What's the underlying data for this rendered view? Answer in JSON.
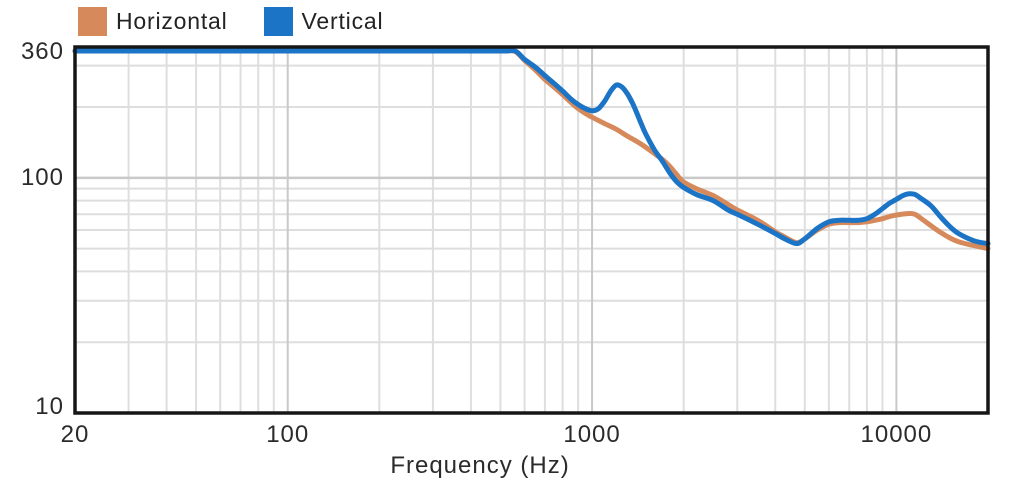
{
  "legend": {
    "items": [
      {
        "label": "Horizontal",
        "color": "#d68a5c"
      },
      {
        "label": "Vertical",
        "color": "#1b74c5"
      }
    ]
  },
  "colors": {
    "background": "#ffffff",
    "grid_minor": "#dedede",
    "grid_major": "#c9c9c9",
    "frame": "#161616",
    "text": "#2b2b2b"
  },
  "chart_data": {
    "type": "line",
    "title": "",
    "xlabel": "Frequency (Hz)",
    "ylabel": "",
    "x_scale": "log",
    "y_scale": "log",
    "xlim": [
      20,
      20000
    ],
    "ylim": [
      10,
      360
    ],
    "grid": true,
    "legend_position": "top-left",
    "x_ticks": [
      {
        "value": 20,
        "label": "20"
      },
      {
        "value": 100,
        "label": "100"
      },
      {
        "value": 1000,
        "label": "1000"
      },
      {
        "value": 10000,
        "label": "10000"
      }
    ],
    "y_ticks": [
      {
        "value": 360,
        "label": "360"
      },
      {
        "value": 100,
        "label": "100"
      },
      {
        "value": 10,
        "label": "10"
      }
    ],
    "series": [
      {
        "name": "Horizontal",
        "color": "#d68a5c",
        "points": [
          [
            20,
            360
          ],
          [
            100,
            360
          ],
          [
            200,
            360
          ],
          [
            300,
            360
          ],
          [
            400,
            360
          ],
          [
            480,
            360
          ],
          [
            520,
            356
          ],
          [
            560,
            344
          ],
          [
            600,
            316
          ],
          [
            650,
            288
          ],
          [
            700,
            262
          ],
          [
            750,
            243
          ],
          [
            800,
            226
          ],
          [
            850,
            210
          ],
          [
            900,
            197
          ],
          [
            950,
            188
          ],
          [
            1000,
            181
          ],
          [
            1100,
            170
          ],
          [
            1200,
            161
          ],
          [
            1300,
            151
          ],
          [
            1400,
            143
          ],
          [
            1500,
            135
          ],
          [
            1600,
            127
          ],
          [
            1700,
            120
          ],
          [
            1800,
            112
          ],
          [
            1900,
            103
          ],
          [
            2000,
            96
          ],
          [
            2200,
            90
          ],
          [
            2500,
            84
          ],
          [
            2800,
            77
          ],
          [
            3000,
            73
          ],
          [
            3500,
            66
          ],
          [
            4000,
            59
          ],
          [
            4300,
            56
          ],
          [
            4700,
            53
          ],
          [
            5000,
            55
          ],
          [
            5500,
            60
          ],
          [
            6000,
            63.5
          ],
          [
            6500,
            64.5
          ],
          [
            7000,
            64.5
          ],
          [
            7500,
            64.5
          ],
          [
            8000,
            65
          ],
          [
            8500,
            66
          ],
          [
            9000,
            67
          ],
          [
            9500,
            68.5
          ],
          [
            10000,
            69.5
          ],
          [
            11000,
            70.5
          ],
          [
            11500,
            70
          ],
          [
            12000,
            67.5
          ],
          [
            13000,
            62.5
          ],
          [
            14000,
            58.5
          ],
          [
            15000,
            55.5
          ],
          [
            16000,
            53.5
          ],
          [
            18000,
            51.5
          ],
          [
            20000,
            50
          ]
        ]
      },
      {
        "name": "Vertical",
        "color": "#1b74c5",
        "points": [
          [
            20,
            360
          ],
          [
            100,
            360
          ],
          [
            200,
            360
          ],
          [
            300,
            360
          ],
          [
            400,
            360
          ],
          [
            480,
            360
          ],
          [
            520,
            357
          ],
          [
            560,
            346
          ],
          [
            600,
            319
          ],
          [
            650,
            296
          ],
          [
            700,
            272
          ],
          [
            750,
            252
          ],
          [
            800,
            234
          ],
          [
            850,
            217
          ],
          [
            900,
            205
          ],
          [
            950,
            197
          ],
          [
            1000,
            193
          ],
          [
            1050,
            197
          ],
          [
            1100,
            212
          ],
          [
            1150,
            233
          ],
          [
            1200,
            248
          ],
          [
            1250,
            244
          ],
          [
            1300,
            230
          ],
          [
            1350,
            211
          ],
          [
            1400,
            190
          ],
          [
            1450,
            170
          ],
          [
            1500,
            154
          ],
          [
            1600,
            132
          ],
          [
            1700,
            118
          ],
          [
            1800,
            105
          ],
          [
            1900,
            96
          ],
          [
            2000,
            91
          ],
          [
            2200,
            85
          ],
          [
            2500,
            80
          ],
          [
            2800,
            73
          ],
          [
            3000,
            70
          ],
          [
            3500,
            63.5
          ],
          [
            4000,
            58
          ],
          [
            4300,
            55
          ],
          [
            4700,
            52.5
          ],
          [
            5000,
            55
          ],
          [
            5500,
            61
          ],
          [
            6000,
            65
          ],
          [
            6500,
            66
          ],
          [
            7000,
            66
          ],
          [
            7500,
            66
          ],
          [
            8000,
            67
          ],
          [
            8500,
            70
          ],
          [
            9000,
            74
          ],
          [
            9500,
            78
          ],
          [
            10000,
            81
          ],
          [
            10500,
            84
          ],
          [
            11000,
            85.5
          ],
          [
            11500,
            85
          ],
          [
            12000,
            82
          ],
          [
            13000,
            76
          ],
          [
            14000,
            68
          ],
          [
            15000,
            62
          ],
          [
            16000,
            58
          ],
          [
            18000,
            54
          ],
          [
            20000,
            52.5
          ]
        ]
      }
    ]
  }
}
